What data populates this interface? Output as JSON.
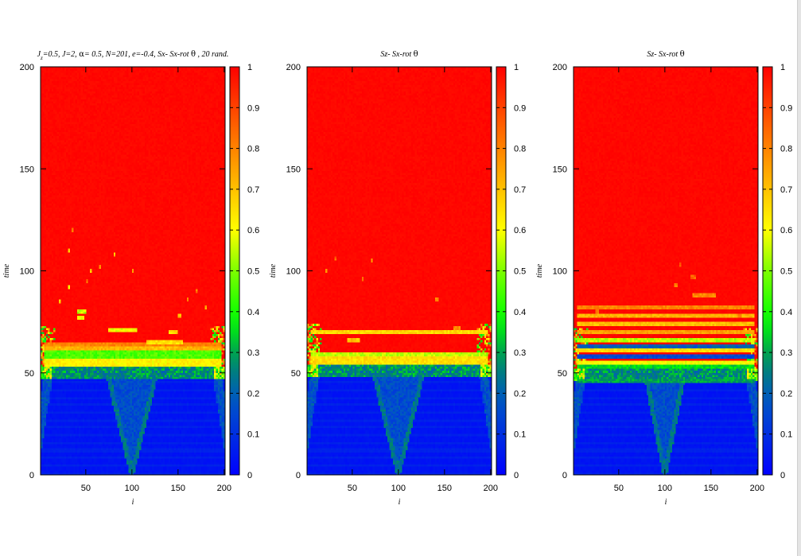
{
  "figure": {
    "colorscale": [
      {
        "v": 0.0,
        "c": "#0000ff"
      },
      {
        "v": 0.18,
        "c": "#0055c8"
      },
      {
        "v": 0.28,
        "c": "#008c64"
      },
      {
        "v": 0.38,
        "c": "#00ff00"
      },
      {
        "v": 0.5,
        "c": "#7dff00"
      },
      {
        "v": 0.6,
        "c": "#ffff00"
      },
      {
        "v": 0.72,
        "c": "#ffb400"
      },
      {
        "v": 0.85,
        "c": "#ff6400"
      },
      {
        "v": 1.0,
        "c": "#ff0000"
      }
    ]
  },
  "chart_data": [
    {
      "type": "heatmap",
      "title": "J_z=0.5,  J=2, α= 0.5,   N=201,  e=-0.4, Sx- Sx-rot θ , 20 rand.",
      "title_parts": [
        {
          "t": "J"
        },
        {
          "t": "z",
          "sub": true
        },
        {
          "t": "=0.5,  J=2, "
        },
        {
          "t": "α",
          "greek": true
        },
        {
          "t": "= 0.5,   N=201,  e=-0.4, Sx- Sx-rot "
        },
        {
          "t": "θ",
          "greek": true
        },
        {
          "t": " , 20 rand."
        }
      ],
      "xlabel": "i",
      "ylabel": "time",
      "xlim": [
        1,
        201
      ],
      "ylim": [
        0,
        200
      ],
      "xticks": [
        50,
        100,
        150,
        200
      ],
      "yticks": [
        0,
        50,
        100,
        150,
        200
      ],
      "colorbar": {
        "range": [
          0,
          1
        ],
        "ticks": [
          0,
          0.1,
          0.2,
          0.3,
          0.4,
          0.5,
          0.6,
          0.7,
          0.8,
          0.9,
          1
        ]
      },
      "field": {
        "front_time": 53,
        "bands": [
          {
            "t": 55,
            "w": 1.6,
            "v": 0.62
          },
          {
            "t": 59,
            "w": 1.5,
            "v": 0.45
          },
          {
            "t": 62,
            "w": 1.2,
            "v": 0.72
          },
          {
            "t": 64,
            "w": 1.0,
            "v": 0.8
          }
        ],
        "cone": {
          "center": 100,
          "start": 0,
          "end": 52,
          "speed": 1.9,
          "v": 0.28
        },
        "edge_noise": 0.55,
        "speckles": [
          {
            "i": 75,
            "t": 71,
            "len": 30,
            "v": 0.6
          },
          {
            "i": 115,
            "t": 65,
            "len": 40,
            "v": 0.65
          },
          {
            "i": 122,
            "t": 62,
            "len": 20,
            "v": 0.7
          },
          {
            "i": 40,
            "t": 80,
            "len": 10,
            "v": 0.55
          },
          {
            "i": 40,
            "t": 77,
            "len": 8,
            "v": 0.6
          },
          {
            "i": 140,
            "t": 70,
            "len": 10,
            "v": 0.65
          },
          {
            "i": 30,
            "t": 92,
            "len": 3,
            "v": 0.6
          },
          {
            "i": 20,
            "t": 85,
            "len": 2,
            "v": 0.7
          },
          {
            "i": 30,
            "t": 110,
            "len": 3,
            "v": 0.7
          },
          {
            "i": 35,
            "t": 120,
            "len": 2,
            "v": 0.8
          },
          {
            "i": 55,
            "t": 100,
            "len": 2,
            "v": 0.7
          },
          {
            "i": 65,
            "t": 102,
            "len": 2,
            "v": 0.75
          },
          {
            "i": 80,
            "t": 108,
            "len": 2,
            "v": 0.7
          },
          {
            "i": 50,
            "t": 95,
            "len": 2,
            "v": 0.8
          },
          {
            "i": 100,
            "t": 100,
            "len": 2,
            "v": 0.75
          },
          {
            "i": 150,
            "t": 78,
            "len": 4,
            "v": 0.7
          },
          {
            "i": 180,
            "t": 82,
            "len": 2,
            "v": 0.75
          },
          {
            "i": 160,
            "t": 86,
            "len": 2,
            "v": 0.8
          },
          {
            "i": 170,
            "t": 90,
            "len": 2,
            "v": 0.8
          }
        ]
      }
    },
    {
      "type": "heatmap",
      "title": "Sz- Sx-rot θ",
      "title_parts": [
        {
          "t": "Sz- Sx-rot "
        },
        {
          "t": "θ",
          "greek": true
        }
      ],
      "xlabel": "i",
      "ylabel": "time",
      "xlim": [
        1,
        201
      ],
      "ylim": [
        0,
        200
      ],
      "xticks": [
        50,
        100,
        150,
        200
      ],
      "yticks": [
        0,
        50,
        100,
        150,
        200
      ],
      "colorbar": {
        "range": [
          0,
          1
        ],
        "ticks": [
          0,
          0.1,
          0.2,
          0.3,
          0.4,
          0.5,
          0.6,
          0.7,
          0.8,
          0.9,
          1
        ]
      },
      "field": {
        "front_time": 54,
        "bands": [
          {
            "t": 56,
            "w": 1.8,
            "v": 0.65
          },
          {
            "t": 59,
            "w": 1.4,
            "v": 0.55
          },
          {
            "t": 70,
            "w": 1.2,
            "v": 0.66
          }
        ],
        "cone": {
          "center": 100,
          "start": 0,
          "end": 52,
          "speed": 1.9,
          "v": 0.28
        },
        "edge_noise": 0.5,
        "speckles": [
          {
            "i": 45,
            "t": 66,
            "len": 14,
            "v": 0.7
          },
          {
            "i": 160,
            "t": 72,
            "len": 8,
            "v": 0.8
          },
          {
            "i": 60,
            "t": 96,
            "len": 3,
            "v": 0.8
          },
          {
            "i": 70,
            "t": 105,
            "len": 2,
            "v": 0.8
          },
          {
            "i": 140,
            "t": 86,
            "len": 3,
            "v": 0.8
          },
          {
            "i": 20,
            "t": 100,
            "len": 2,
            "v": 0.8
          },
          {
            "i": 30,
            "t": 106,
            "len": 2,
            "v": 0.85
          }
        ]
      }
    },
    {
      "type": "heatmap",
      "title": "Sz- Sx-rot θ",
      "title_parts": [
        {
          "t": "Sz- Sx-rot "
        },
        {
          "t": "θ",
          "greek": true
        }
      ],
      "xlabel": "i",
      "ylabel": "time",
      "xlim": [
        1,
        201
      ],
      "ylim": [
        0,
        200
      ],
      "xticks": [
        50,
        100,
        150,
        200
      ],
      "yticks": [
        0,
        50,
        100,
        150,
        200
      ],
      "colorbar": {
        "range": [
          0,
          1
        ],
        "ticks": [
          0,
          0.1,
          0.2,
          0.3,
          0.4,
          0.5,
          0.6,
          0.7,
          0.8,
          0.9,
          1
        ]
      },
      "field": {
        "front_time": 52,
        "bands": [
          {
            "t": 46,
            "w": 1.0,
            "v": 0.3
          },
          {
            "t": 53,
            "w": 1.0,
            "v": 0.35
          },
          {
            "t": 55,
            "w": 1.4,
            "v": 0.6
          },
          {
            "t": 58,
            "w": 1.0,
            "v": 0.15
          },
          {
            "t": 61,
            "w": 1.2,
            "v": 0.65
          },
          {
            "t": 63,
            "w": 1.0,
            "v": 0.2
          },
          {
            "t": 66,
            "w": 1.2,
            "v": 0.55
          },
          {
            "t": 70,
            "w": 1.2,
            "v": 0.75
          },
          {
            "t": 74,
            "w": 1.2,
            "v": 0.7
          },
          {
            "t": 78,
            "w": 1.0,
            "v": 0.72
          },
          {
            "t": 82,
            "w": 1.0,
            "v": 0.8
          }
        ],
        "cone": {
          "center": 100,
          "start": 0,
          "end": 46,
          "speed": 1.5,
          "v": 0.28
        },
        "edge_noise": 0.5,
        "speckles": [
          {
            "i": 130,
            "t": 88,
            "len": 25,
            "v": 0.8
          },
          {
            "i": 128,
            "t": 97,
            "len": 6,
            "v": 0.85
          },
          {
            "i": 110,
            "t": 93,
            "len": 3,
            "v": 0.8
          },
          {
            "i": 25,
            "t": 80,
            "len": 3,
            "v": 0.8
          },
          {
            "i": 115,
            "t": 103,
            "len": 2,
            "v": 0.85
          },
          {
            "i": 180,
            "t": 78,
            "len": 4,
            "v": 0.85
          }
        ]
      }
    }
  ]
}
